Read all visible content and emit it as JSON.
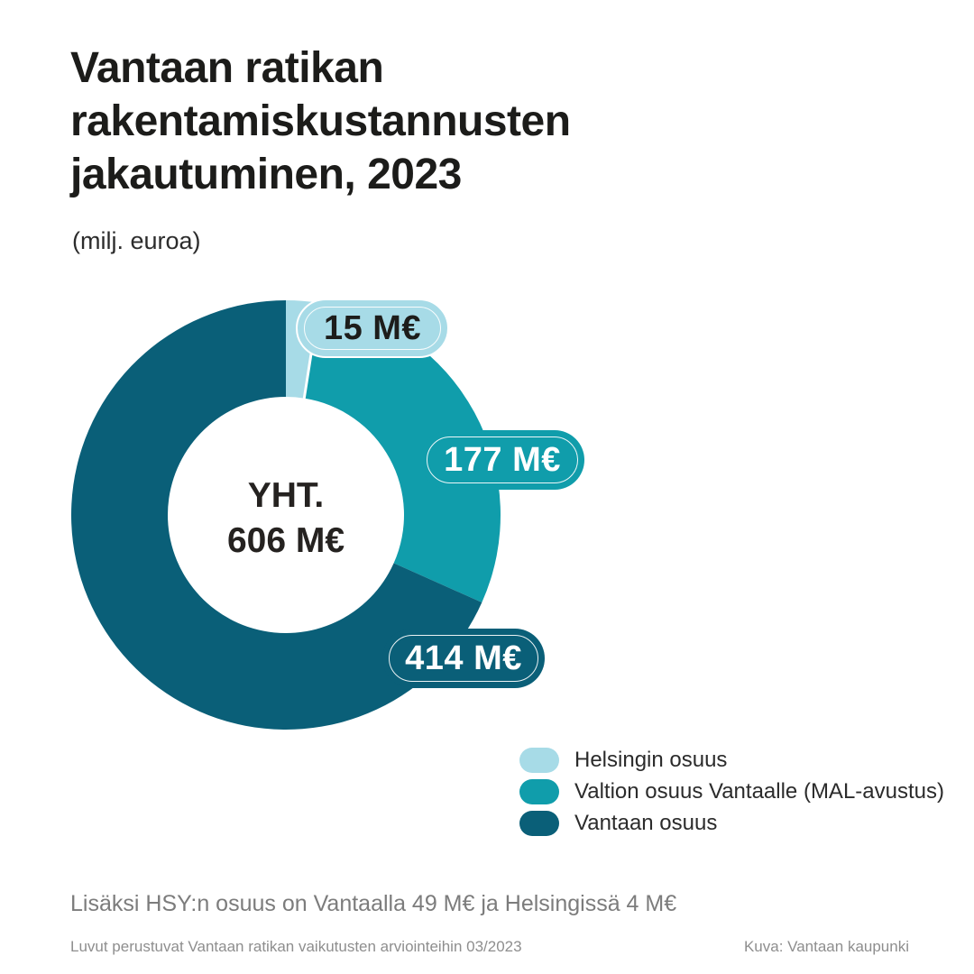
{
  "header": {
    "title": "Vantaan ratikan rakentamiskustannusten jakautuminen, 2023",
    "subtitle": "(milj. euroa)"
  },
  "chart_data": {
    "type": "pie",
    "variant": "donut",
    "title": "Vantaan ratikan rakentamiskustannusten jakautuminen, 2023",
    "unit": "milj. euroa",
    "total": 606,
    "center_label": {
      "line1": "YHT.",
      "line2": "606 M€"
    },
    "start_angle_deg": 0,
    "direction": "clockwise",
    "separators_after": [
      0
    ],
    "legend_position": "bottom-right",
    "segments": [
      {
        "label": "Helsingin osuus",
        "value": 15,
        "value_label": "15 M€",
        "color": "#a7dbe7",
        "label_text_color": "#1d1d1b"
      },
      {
        "label": "Valtion osuus Vantaalle (MAL-avustus)",
        "value": 177,
        "value_label": "177 M€",
        "color": "#109dab",
        "label_text_color": "#ffffff"
      },
      {
        "label": "Vantaan osuus",
        "value": 414,
        "value_label": "414 M€",
        "color": "#0a5f78",
        "label_text_color": "#ffffff"
      }
    ]
  },
  "footnote": "Lisäksi HSY:n osuus on Vantaalla 49 M€ ja Helsingissä 4 M€",
  "footer": {
    "left": "Luvut perustuvat Vantaan ratikan vaikutusten arviointeihin 03/2023",
    "right": "Kuva: Vantaan kaupunki"
  }
}
